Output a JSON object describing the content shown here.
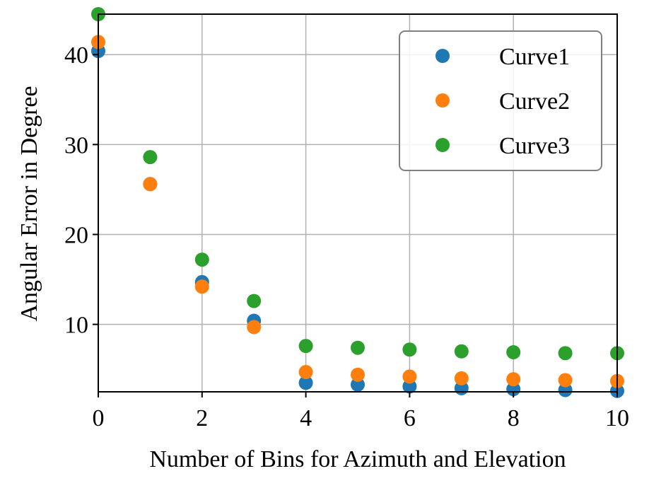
{
  "chart_data": {
    "type": "scatter",
    "title": "",
    "xlabel": "Number of Bins for Azimuth and Elevation",
    "ylabel": "Angular Error in Degree",
    "xlim": [
      0,
      10
    ],
    "ylim": [
      2.5,
      44.5
    ],
    "xticks": [
      0,
      2,
      4,
      6,
      8,
      10
    ],
    "yticks": [
      10,
      20,
      30,
      40
    ],
    "grid": true,
    "legend_position": "top-right",
    "series": [
      {
        "name": "Curve1",
        "color": "#1f77b4",
        "x": [
          0,
          1,
          2,
          3,
          4,
          5,
          6,
          7,
          8,
          9,
          10
        ],
        "y": [
          40.4,
          25.6,
          14.7,
          10.4,
          3.5,
          3.3,
          3.1,
          2.9,
          2.8,
          2.7,
          2.6
        ]
      },
      {
        "name": "Curve2",
        "color": "#ff7f0e",
        "x": [
          0,
          1,
          2,
          3,
          4,
          5,
          6,
          7,
          8,
          9,
          10
        ],
        "y": [
          41.4,
          25.6,
          14.2,
          9.7,
          4.7,
          4.4,
          4.2,
          4.0,
          3.9,
          3.8,
          3.7
        ]
      },
      {
        "name": "Curve3",
        "color": "#2ca02c",
        "x": [
          0,
          1,
          2,
          3,
          4,
          5,
          6,
          7,
          8,
          9,
          10
        ],
        "y": [
          44.5,
          28.6,
          17.2,
          12.6,
          7.6,
          7.4,
          7.2,
          7.0,
          6.9,
          6.8,
          6.8
        ]
      }
    ]
  }
}
